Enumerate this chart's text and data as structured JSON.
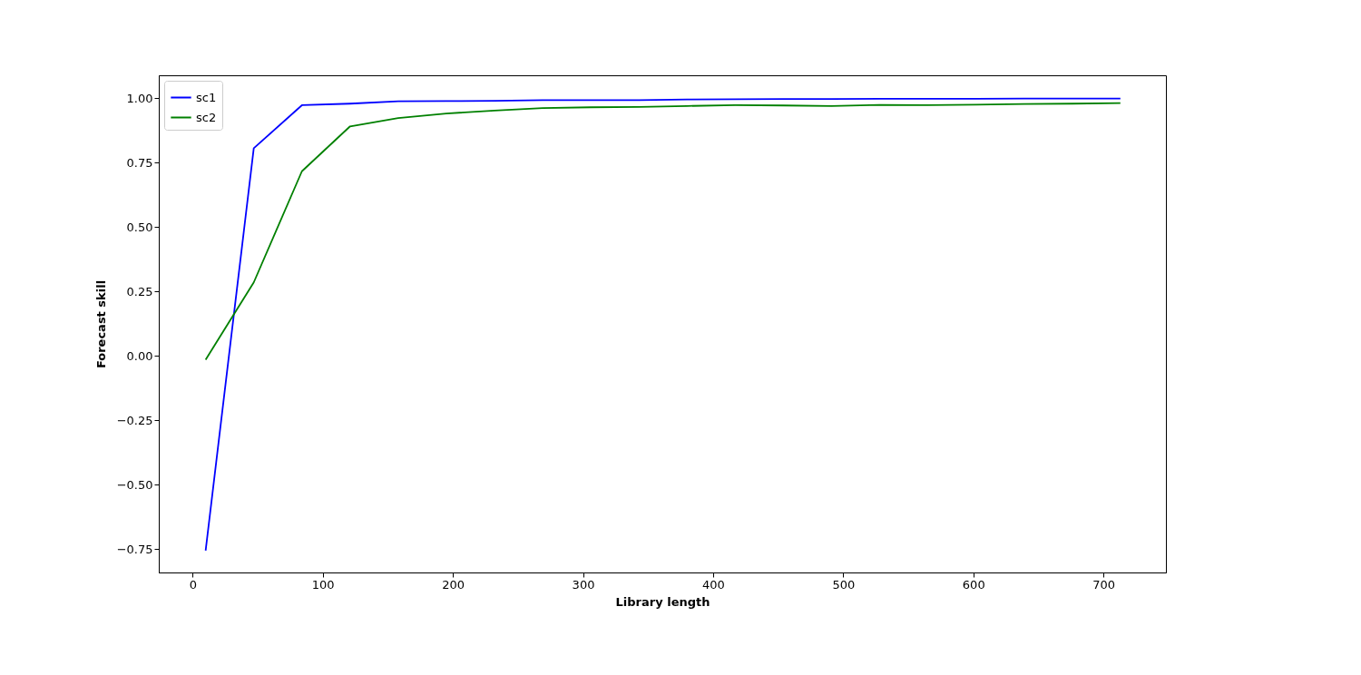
{
  "chart_data": {
    "type": "line",
    "xlabel": "Library length",
    "ylabel": "Forecast skill",
    "x": [
      10,
      47,
      84,
      121,
      158,
      195,
      232,
      269,
      306,
      343,
      380,
      417,
      454,
      491,
      528,
      565,
      602,
      639,
      676,
      713
    ],
    "series": [
      {
        "name": "sc1",
        "color": "#0000ff",
        "values": [
          -0.755,
          0.805,
          0.972,
          0.978,
          0.987,
          0.988,
          0.989,
          0.992,
          0.992,
          0.992,
          0.994,
          0.995,
          0.996,
          0.996,
          0.997,
          0.997,
          0.997,
          0.998,
          0.998,
          0.998
        ]
      },
      {
        "name": "sc2",
        "color": "#008000",
        "values": [
          -0.015,
          0.285,
          0.716,
          0.89,
          0.922,
          0.94,
          0.951,
          0.961,
          0.964,
          0.965,
          0.969,
          0.972,
          0.971,
          0.969,
          0.973,
          0.972,
          0.974,
          0.977,
          0.978,
          0.98
        ]
      }
    ],
    "xlim": [
      -26,
      748
    ],
    "ylim": [
      -0.84,
      1.088
    ],
    "xticks": [
      0,
      100,
      200,
      300,
      400,
      500,
      600,
      700
    ],
    "yticks": [
      {
        "value": -0.75,
        "label": "−0.75"
      },
      {
        "value": -0.5,
        "label": "−0.50"
      },
      {
        "value": -0.25,
        "label": "−0.25"
      },
      {
        "value": 0,
        "label": "0.00"
      },
      {
        "value": 0.25,
        "label": "0.25"
      },
      {
        "value": 0.5,
        "label": "0.50"
      },
      {
        "value": 0.75,
        "label": "0.75"
      },
      {
        "value": 1,
        "label": "1.00"
      }
    ],
    "legend": "top left",
    "grid": false
  }
}
